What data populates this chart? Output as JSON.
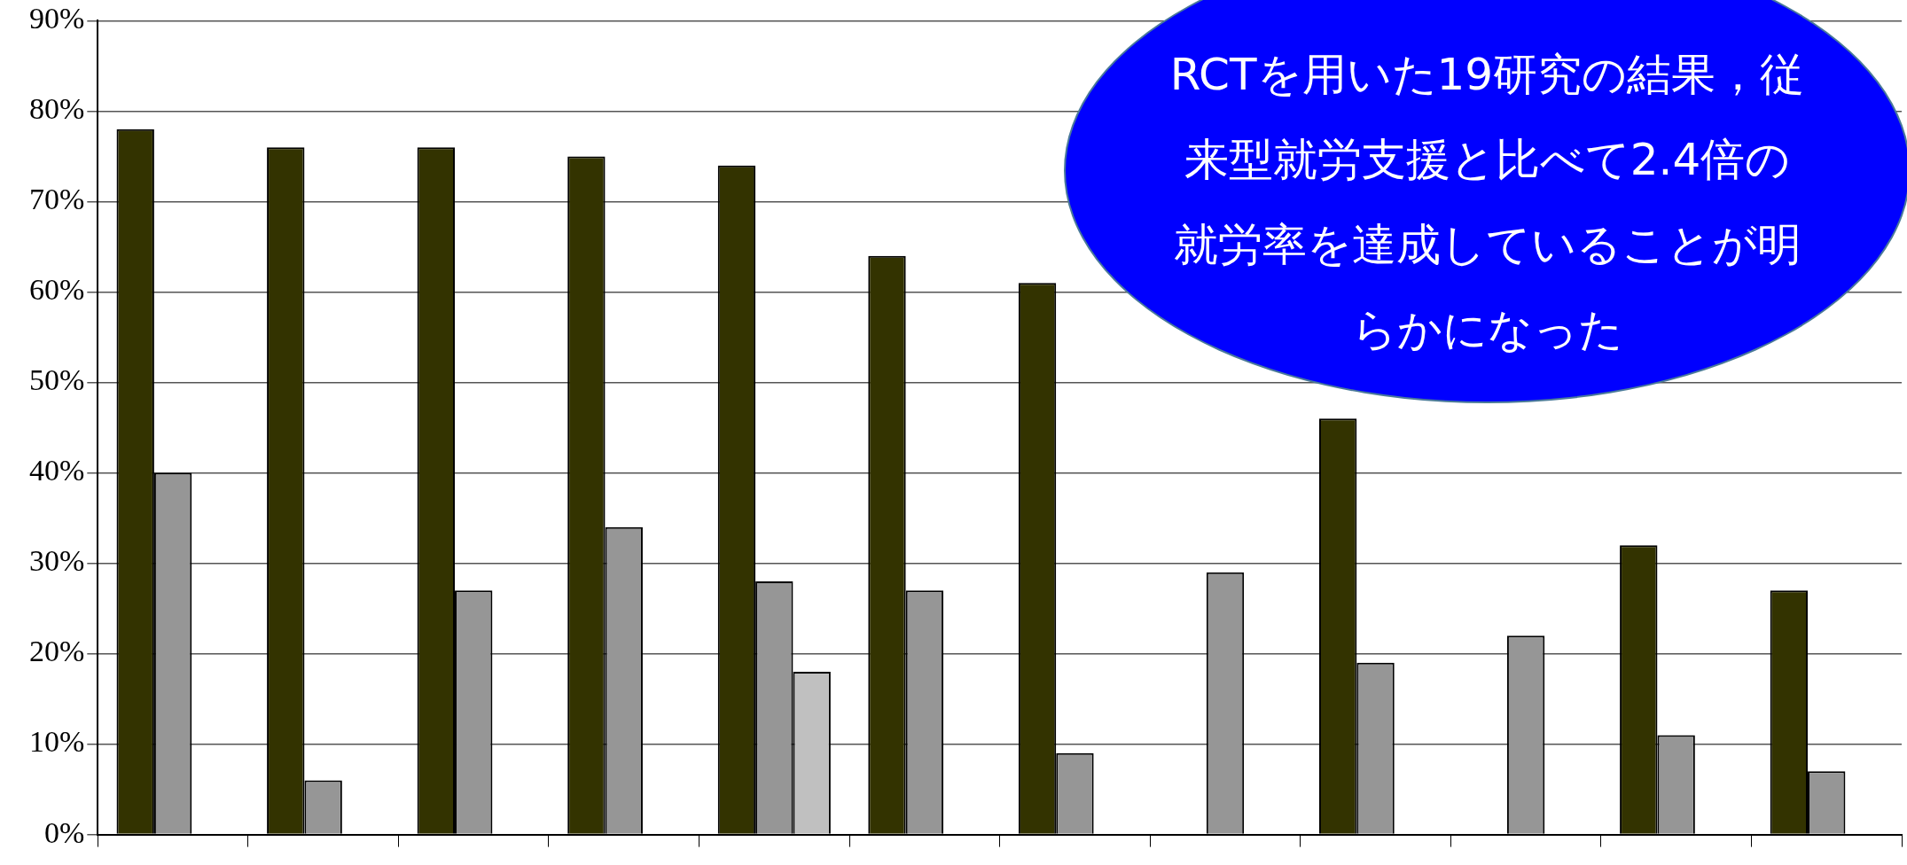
{
  "chart_data": {
    "type": "bar",
    "categories": [
      null,
      null,
      null,
      null,
      null,
      null,
      null,
      null,
      null,
      null,
      null,
      null
    ],
    "series": [
      {
        "color": "#333300",
        "values": [
          78,
          76,
          76,
          75,
          74,
          64,
          61,
          null,
          46,
          null,
          32,
          27
        ]
      },
      {
        "color": "#969696",
        "values": [
          40,
          6,
          27,
          34,
          28,
          27,
          9,
          29,
          19,
          22,
          11,
          7
        ]
      },
      {
        "color": "#c0c0c0",
        "values": [
          null,
          null,
          null,
          null,
          18,
          null,
          null,
          null,
          null,
          null,
          null,
          null
        ]
      }
    ],
    "ylim": [
      0,
      90
    ],
    "yticks": [
      {
        "value": 0,
        "label": "0%"
      },
      {
        "value": 10,
        "label": "10%"
      },
      {
        "value": 20,
        "label": "20%"
      },
      {
        "value": 30,
        "label": "30%"
      },
      {
        "value": 40,
        "label": "40%"
      },
      {
        "value": 50,
        "label": "50%"
      },
      {
        "value": 60,
        "label": "60%"
      },
      {
        "value": 70,
        "label": "70%"
      },
      {
        "value": 80,
        "label": "80%"
      },
      {
        "value": 90,
        "label": "90%"
      }
    ],
    "grid": "y",
    "legend": false,
    "annotations": [
      "RCTを用いた19研究の結果，従来型就労支援と比べて2.4倍の就労率を達成していることが明らかになった"
    ]
  }
}
